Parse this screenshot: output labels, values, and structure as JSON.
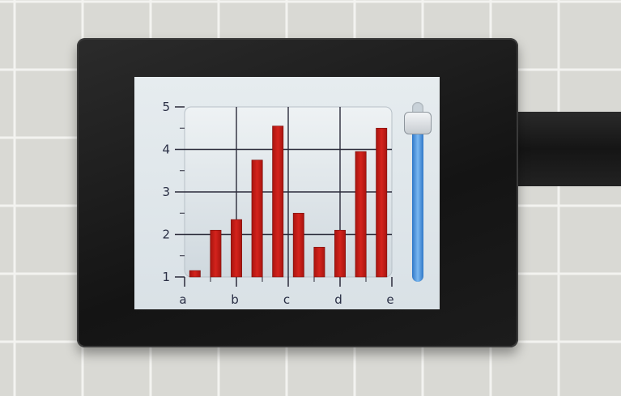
{
  "chart_data": {
    "type": "bar",
    "y_axis": {
      "min": 1,
      "max": 5,
      "ticks": [
        "1",
        "2",
        "3",
        "4",
        "5"
      ]
    },
    "x_axis": {
      "ticks": [
        "a",
        "b",
        "c",
        "d",
        "e"
      ]
    },
    "values": [
      1.15,
      2.1,
      2.35,
      3.75,
      4.55,
      2.5,
      1.7,
      2.1,
      3.95,
      4.5
    ],
    "grid": true,
    "bar_color": "#d4231c"
  },
  "slider": {
    "value_percent": 94
  }
}
